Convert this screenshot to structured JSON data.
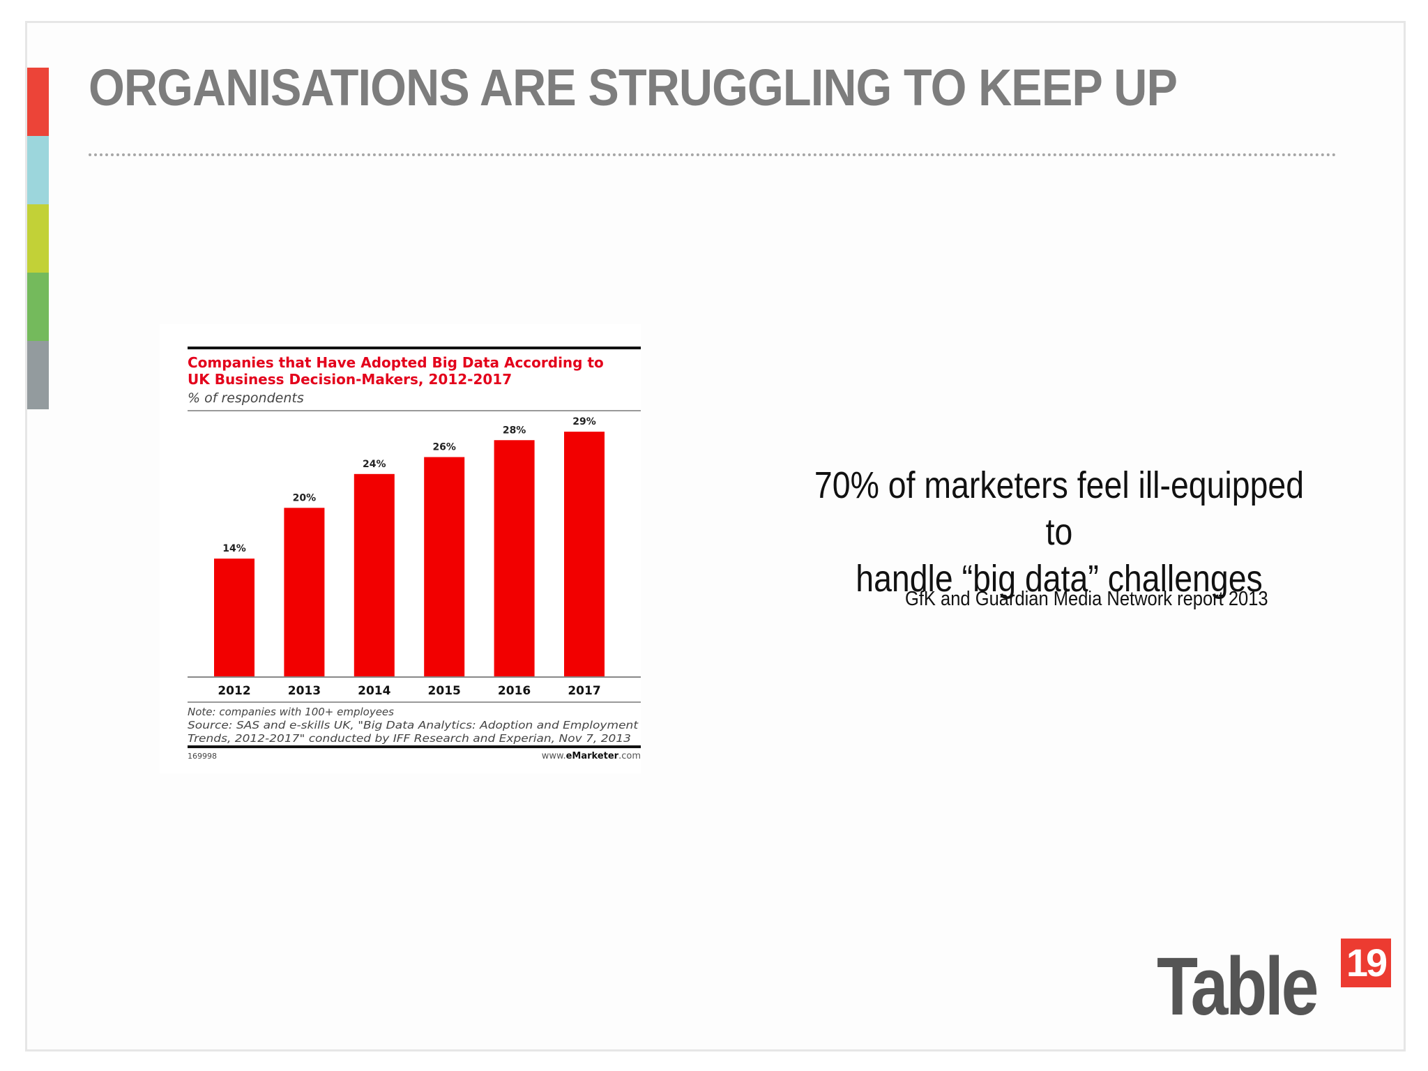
{
  "slide": {
    "title": "ORGANISATIONS ARE STRUGGLING TO KEEP UP",
    "accent_colors": [
      "#ec4438",
      "#9cd6dc",
      "#c2d137",
      "#74ba5c",
      "#939b9e"
    ]
  },
  "quote": {
    "line1": "70% of marketers feel ill-equipped to",
    "line2": "handle “big data” challenges",
    "source": "GfK and Guardian Media Network report 2013"
  },
  "logo": {
    "text": "Table",
    "badge": "19",
    "badge_color": "#ec3b31"
  },
  "chart_data": {
    "type": "bar",
    "title": "Companies that Have Adopted Big Data According to UK Business Decision-Makers, 2012-2017",
    "title_line1": "Companies that Have Adopted Big Data According to",
    "title_line2": "UK Business Decision-Makers, 2012-2017",
    "subtitle": "% of respondents",
    "categories": [
      "2012",
      "2013",
      "2014",
      "2015",
      "2016",
      "2017"
    ],
    "values": [
      14,
      20,
      24,
      26,
      28,
      29
    ],
    "value_labels": [
      "14%",
      "20%",
      "24%",
      "26%",
      "28%",
      "29%"
    ],
    "ylim": [
      0,
      30
    ],
    "bar_color": "#f20000",
    "title_color": "#e3001b",
    "note": "Note: companies with 100+ employees",
    "source_line1": "Source: SAS and e-skills UK, \"Big Data Analytics: Adoption and Employment",
    "source_line2": "Trends, 2012-2017\" conducted by IFF Research and Experian, Nov 7, 2013",
    "chart_id": "169998",
    "footer_site_pre": "www.",
    "footer_site_brand": "eMarketer",
    "footer_site_post": ".com"
  }
}
